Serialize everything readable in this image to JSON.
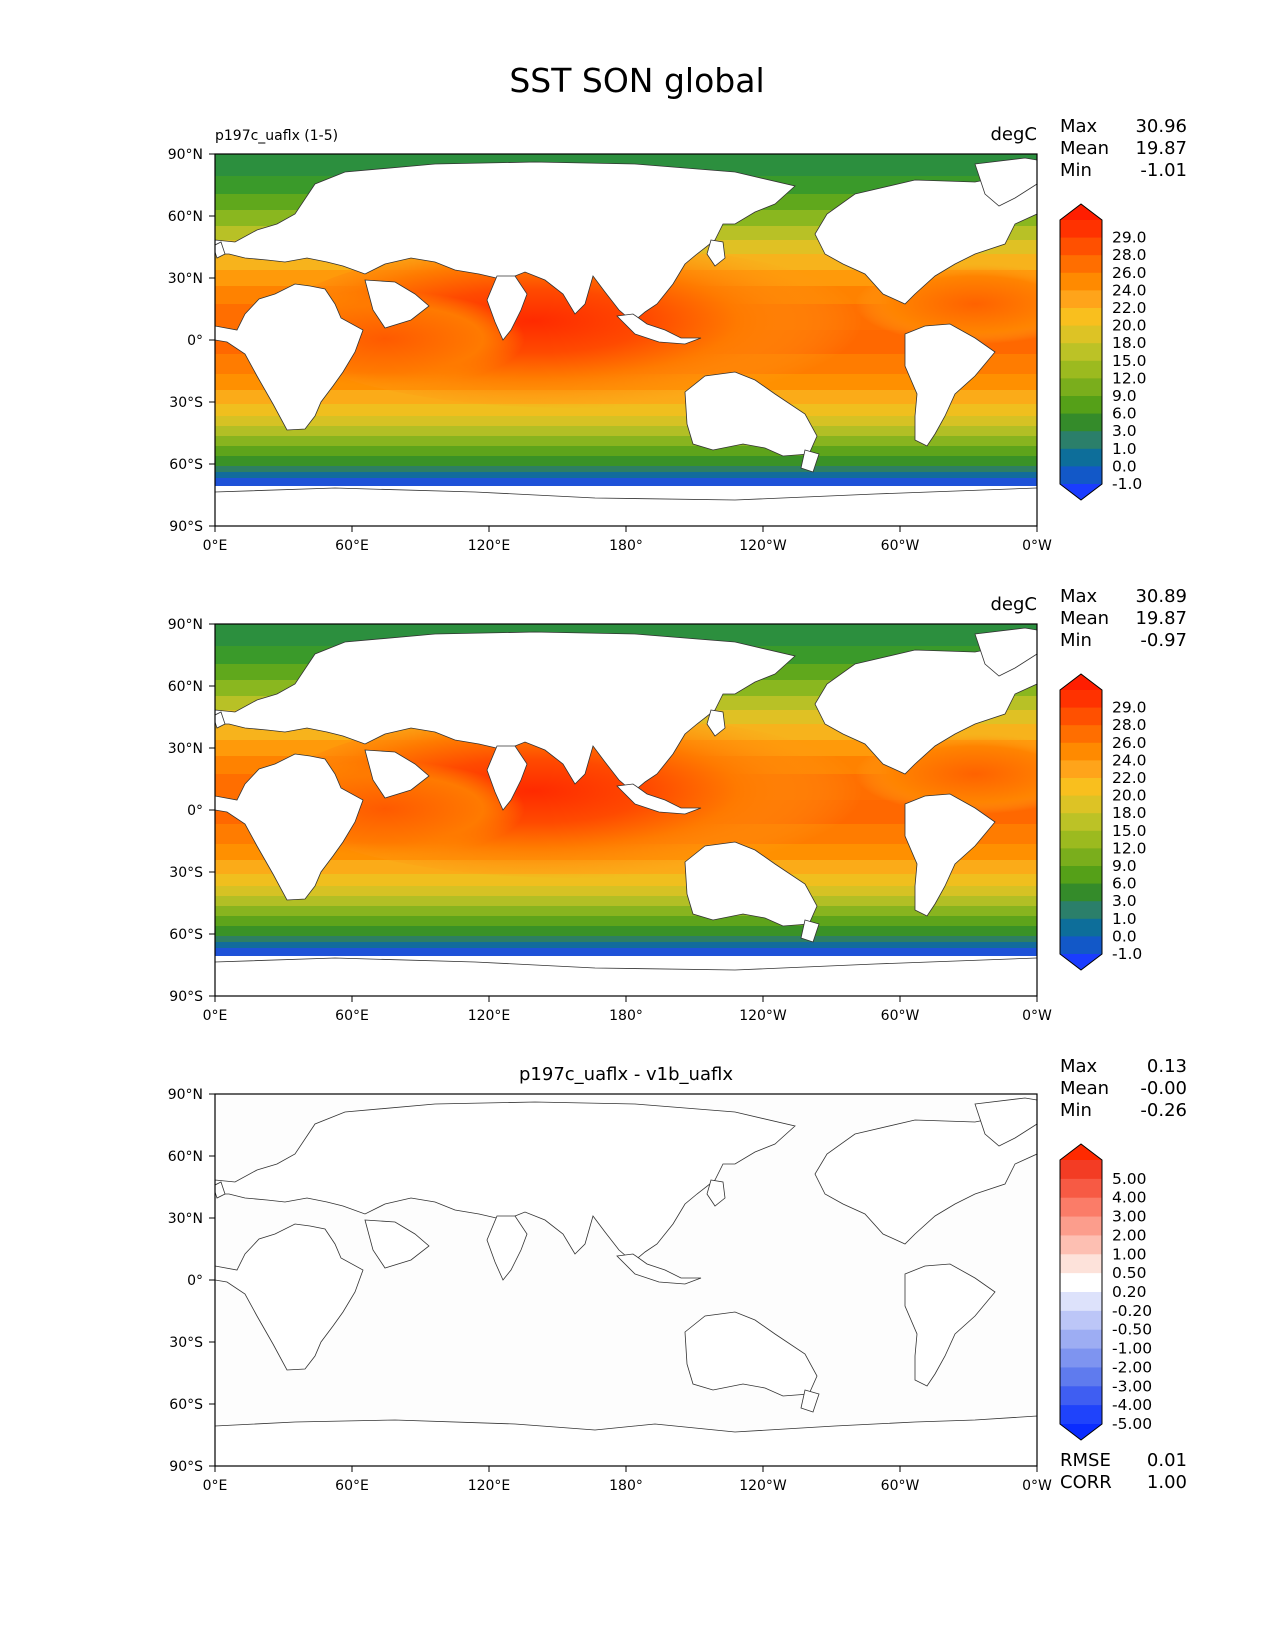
{
  "figure_title": "SST SON global",
  "lat_ticks": [
    "90°N",
    "60°N",
    "30°N",
    "0°",
    "30°S",
    "60°S",
    "90°S"
  ],
  "lon_ticks": [
    "0°E",
    "60°E",
    "120°E",
    "180°",
    "120°W",
    "60°W",
    "0°W"
  ],
  "panels": [
    {
      "title_left": "p197c_uaflx (1-5)",
      "title_center": "",
      "units": "degC",
      "stats": [
        {
          "label": "Max",
          "value": "30.96"
        },
        {
          "label": "Mean",
          "value": "19.87"
        },
        {
          "label": "Min",
          "value": "-1.01"
        }
      ],
      "footer_stats": [],
      "map": "field",
      "colorbar": {
        "labels": [
          "29.0",
          "28.0",
          "26.0",
          "24.0",
          "22.0",
          "20.0",
          "18.0",
          "15.0",
          "12.0",
          "9.0",
          "6.0",
          "3.0",
          "1.0",
          "0.0",
          "-1.0"
        ],
        "colors": [
          "#ff1e00",
          "#ff3200",
          "#ff5000",
          "#ff6e00",
          "#ff8a00",
          "#ffa41a",
          "#f9bf1e",
          "#ddc325",
          "#bcc226",
          "#9cba1f",
          "#7aae1c",
          "#55a018",
          "#348b2a",
          "#2b7f6a",
          "#0d6e9a",
          "#1258c8",
          "#1a3cff"
        ]
      }
    },
    {
      "title_left": "",
      "title_center": "",
      "units": "degC",
      "stats": [
        {
          "label": "Max",
          "value": "30.89"
        },
        {
          "label": "Mean",
          "value": "19.87"
        },
        {
          "label": "Min",
          "value": "-0.97"
        }
      ],
      "footer_stats": [],
      "map": "field",
      "colorbar": {
        "labels": [
          "29.0",
          "28.0",
          "26.0",
          "24.0",
          "22.0",
          "20.0",
          "18.0",
          "15.0",
          "12.0",
          "9.0",
          "6.0",
          "3.0",
          "1.0",
          "0.0",
          "-1.0"
        ],
        "colors": [
          "#ff1e00",
          "#ff3200",
          "#ff5000",
          "#ff6e00",
          "#ff8a00",
          "#ffa41a",
          "#f9bf1e",
          "#ddc325",
          "#bcc226",
          "#9cba1f",
          "#7aae1c",
          "#55a018",
          "#348b2a",
          "#2b7f6a",
          "#0d6e9a",
          "#1258c8",
          "#1a3cff"
        ]
      }
    },
    {
      "title_left": "",
      "title_center": "p197c_uaflx - v1b_uaflx",
      "units": "",
      "stats": [
        {
          "label": "Max",
          "value": "0.13"
        },
        {
          "label": "Mean",
          "value": "-0.00"
        },
        {
          "label": "Min",
          "value": "-0.26"
        }
      ],
      "footer_stats": [
        {
          "label": "RMSE",
          "value": "0.01"
        },
        {
          "label": "CORR",
          "value": "1.00"
        }
      ],
      "map": "blank",
      "colorbar": {
        "labels": [
          "5.00",
          "4.00",
          "3.00",
          "2.00",
          "1.00",
          "0.50",
          "0.20",
          "-0.20",
          "-0.50",
          "-1.00",
          "-2.00",
          "-3.00",
          "-4.00",
          "-5.00"
        ],
        "colors": [
          "#ff2a00",
          "#f33c24",
          "#f75a44",
          "#fb7c68",
          "#fc9d8c",
          "#fdbfb2",
          "#fde2da",
          "#ffffff",
          "#dde2fb",
          "#bcc6f7",
          "#9dadf3",
          "#7e94f0",
          "#5f7bee",
          "#3f5ef2",
          "#1f43fb",
          "#0a2cff"
        ]
      }
    }
  ]
}
